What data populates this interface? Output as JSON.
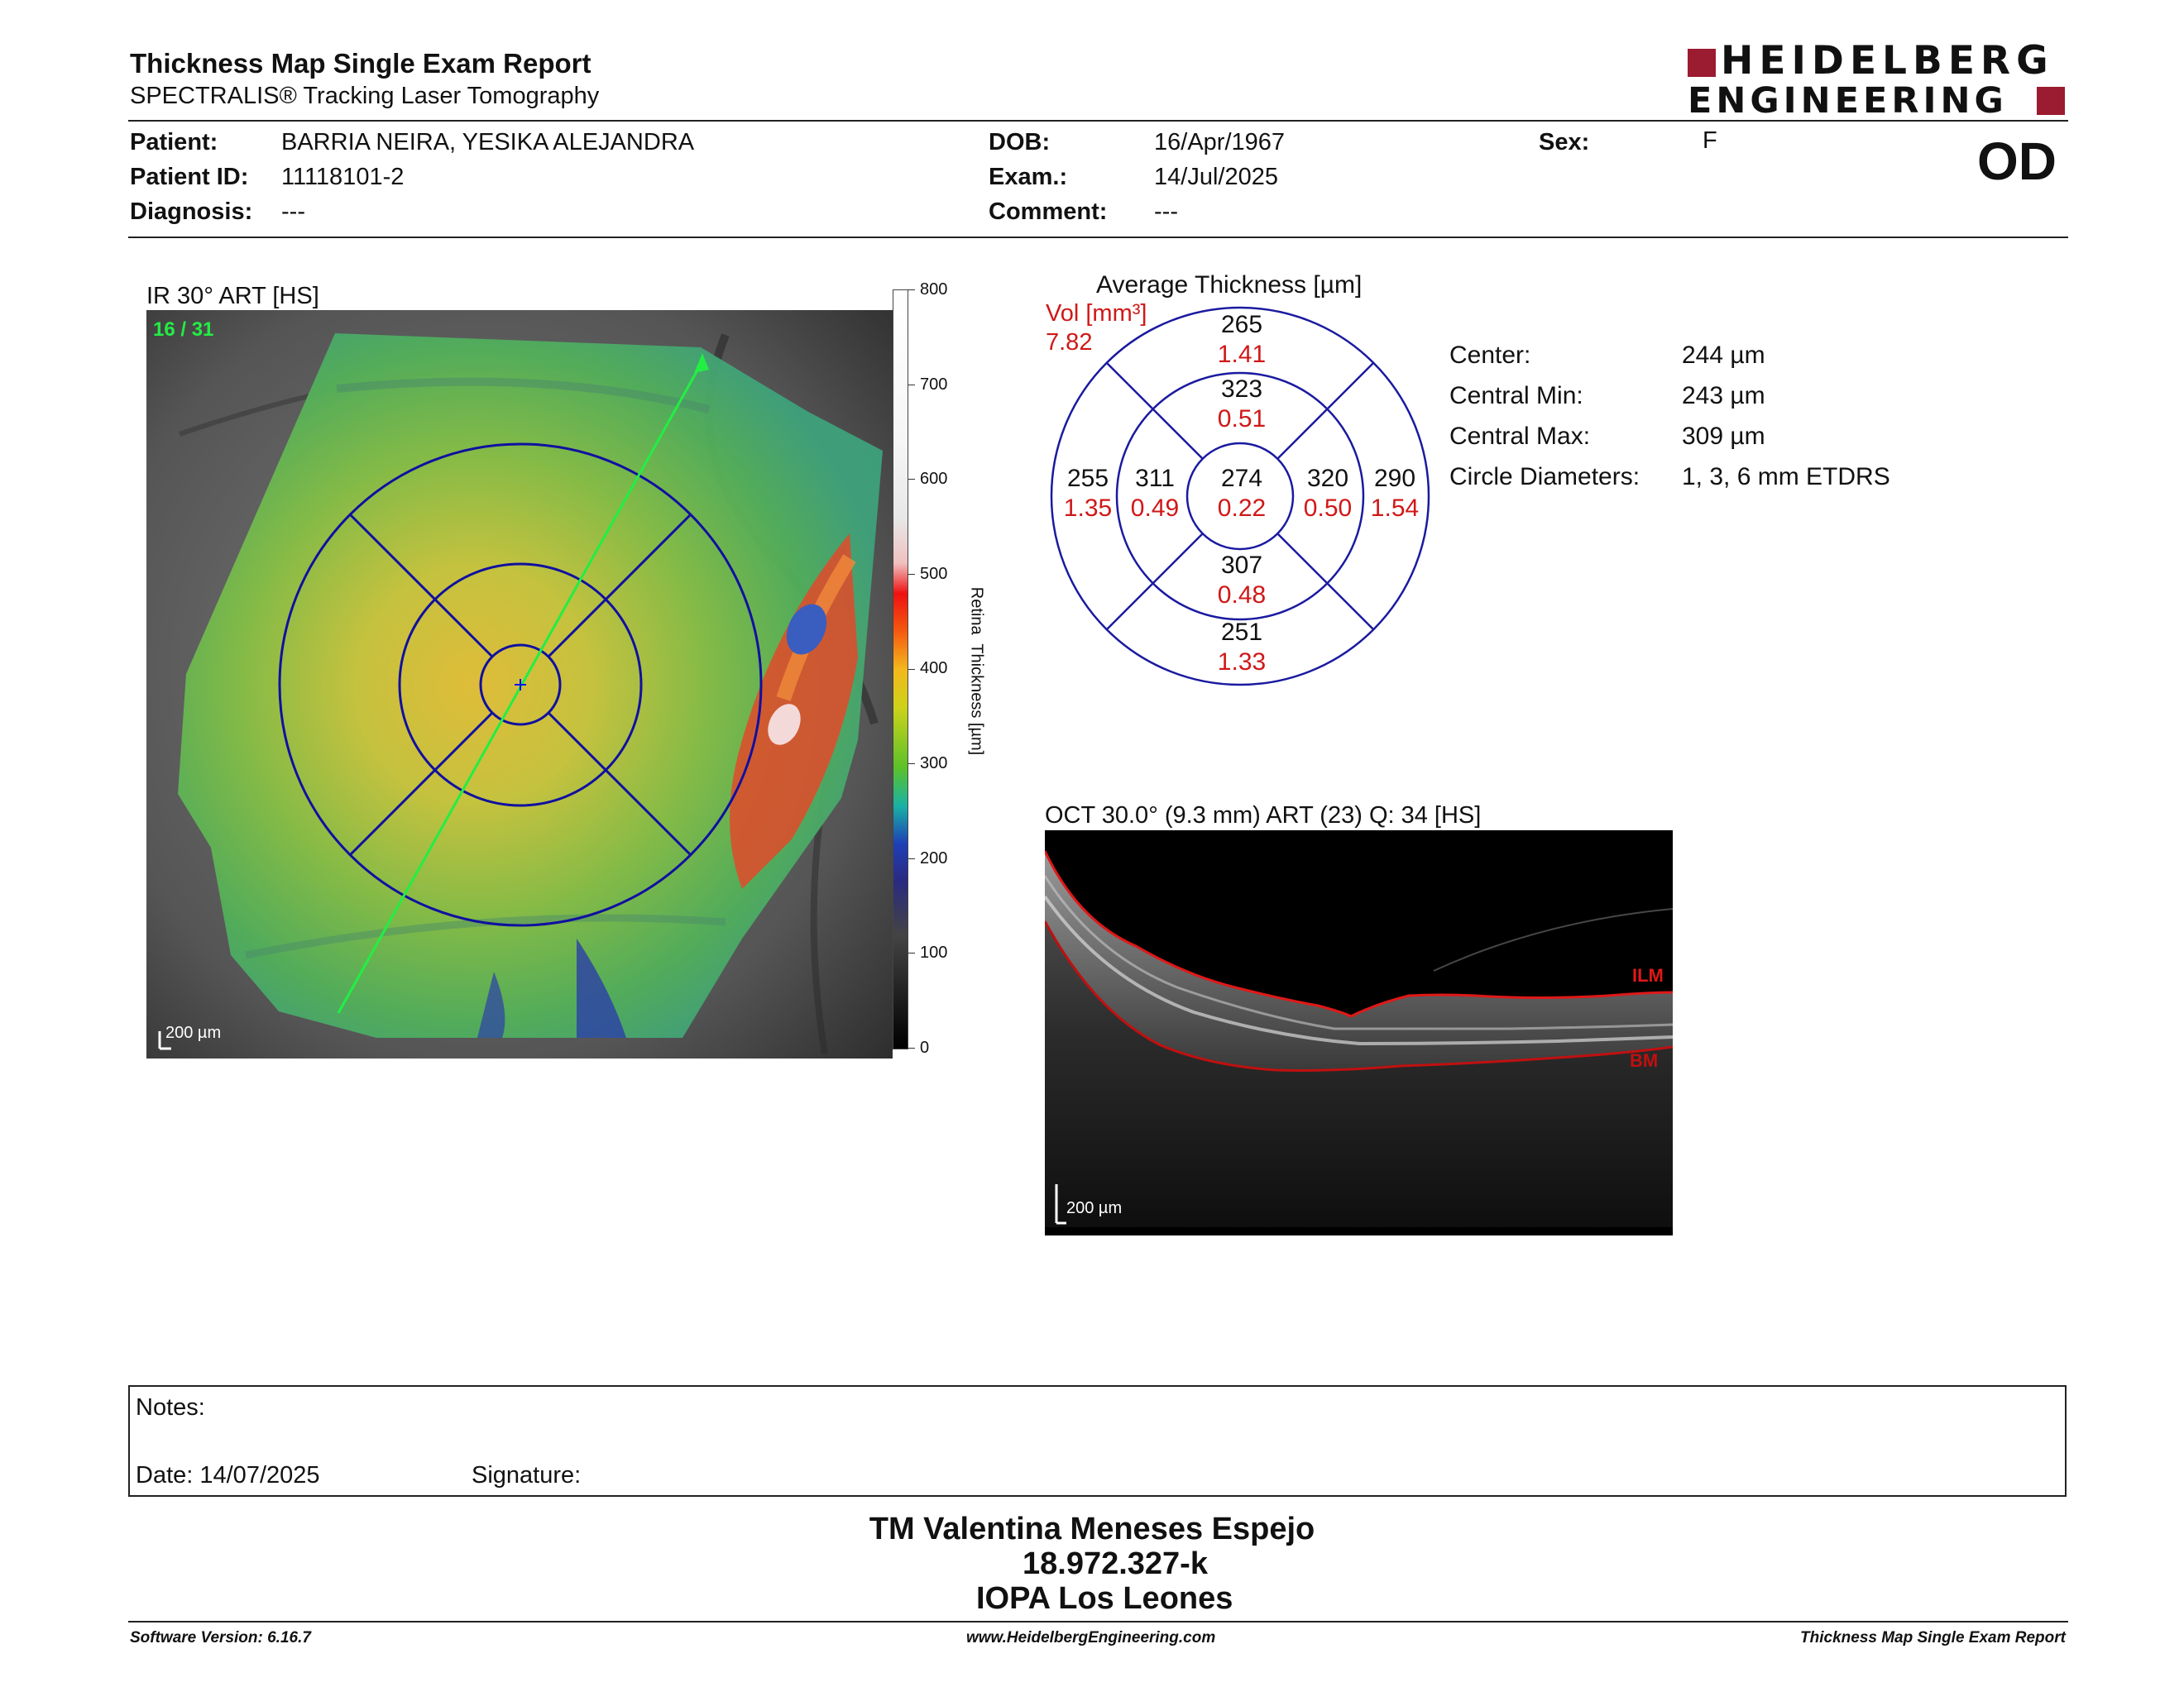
{
  "header": {
    "title": "Thickness Map Single Exam Report",
    "subtitle": "SPECTRALIS® Tracking Laser Tomography",
    "logo_line1": "HEIDELBERG",
    "logo_line2": "ENGINEERING",
    "eye": "OD"
  },
  "patient": {
    "patient_label": "Patient:",
    "patient_value": "BARRIA NEIRA, YESIKA ALEJANDRA",
    "id_label": "Patient ID:",
    "id_value": "11118101-2",
    "diagnosis_label": "Diagnosis:",
    "diagnosis_value": "---",
    "dob_label": "DOB:",
    "dob_value": "16/Apr/1967",
    "exam_label": "Exam.:",
    "exam_value": "14/Jul/2025",
    "comment_label": "Comment:",
    "comment_value": "---",
    "sex_label": "Sex:",
    "sex_value": "F"
  },
  "fundus": {
    "caption": "IR 30° ART [HS]",
    "frame": "16 / 31",
    "scale": "200 µm",
    "colorbar_ticks": [
      "800",
      "700",
      "600",
      "500",
      "400",
      "300",
      "200",
      "100",
      "0"
    ],
    "colorbar_label": "Retina  Thickness [µm]"
  },
  "etdrs": {
    "title": "Average Thickness [µm]",
    "vol_label": "Vol [mm³]",
    "vol_total": "7.82",
    "center": {
      "thickness": "274",
      "volume": "0.22"
    },
    "inner_superior": {
      "thickness": "323",
      "volume": "0.51"
    },
    "inner_temporal": {
      "thickness": "311",
      "volume": "0.49"
    },
    "inner_nasal": {
      "thickness": "320",
      "volume": "0.50"
    },
    "inner_inferior": {
      "thickness": "307",
      "volume": "0.48"
    },
    "outer_superior": {
      "thickness": "265",
      "volume": "1.41"
    },
    "outer_temporal": {
      "thickness": "255",
      "volume": "1.35"
    },
    "outer_nasal": {
      "thickness": "290",
      "volume": "1.54"
    },
    "outer_inferior": {
      "thickness": "251",
      "volume": "1.33"
    }
  },
  "stats": [
    {
      "label": "Center:",
      "value": "244 µm"
    },
    {
      "label": "Central Min:",
      "value": "243 µm"
    },
    {
      "label": "Central Max:",
      "value": "309 µm"
    },
    {
      "label": "Circle Diameters:",
      "value": "1, 3, 6 mm ETDRS"
    }
  ],
  "oct": {
    "caption": "OCT 30.0° (9.3 mm) ART (23) Q: 34 [HS]",
    "scale": "200 µm",
    "ilm": "ILM",
    "bm": "BM"
  },
  "notes": {
    "label": "Notes:",
    "date": "Date: 14/07/2025",
    "signature": "Signature:"
  },
  "signer": {
    "name": "TM Valentina Meneses Espejo",
    "rut": "18.972.327-k",
    "institution": "IOPA Los Leones"
  },
  "footer": {
    "version": "Software Version: 6.16.7",
    "url": "www.HeidelbergEngineering.com",
    "report": "Thickness Map Single Exam Report"
  },
  "colors": {
    "accent_red": "#d01818",
    "logo_red": "#9b1b30",
    "etdrs_blue": "#1a1aa0"
  }
}
